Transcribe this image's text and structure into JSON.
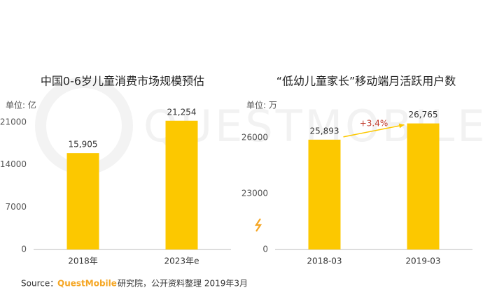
{
  "chart_data": [
    {
      "type": "bar",
      "title": "中国0-6岁儿童消费市场规模预估",
      "unit": "单位: 亿",
      "categories": [
        "2018年",
        "2023年e"
      ],
      "values": [
        15905,
        21254
      ],
      "value_labels": [
        "15,905",
        "21,254"
      ],
      "color": "#fcc800",
      "ylim": [
        0,
        22000
      ],
      "yticks": [
        0,
        7000,
        14000,
        21000
      ]
    },
    {
      "type": "bar",
      "title": "“低幼儿童家长”移动端月活跃用户数",
      "unit": "单位: 万",
      "categories": [
        "2018-03",
        "2019-03"
      ],
      "values": [
        25893,
        26765
      ],
      "value_labels": [
        "25,893",
        "26,765"
      ],
      "color": "#fcc800",
      "ylim": [
        0,
        27500
      ],
      "yticks": [
        0,
        23000,
        26000
      ],
      "axis_break": [
        0,
        20000
      ],
      "annotation": "+3.4%"
    }
  ],
  "source": {
    "label": "Source：",
    "brand": "QuestMobile",
    "text": "研究院，公开资料整理 2019年3月"
  },
  "watermark": "QUESTMOBILE"
}
